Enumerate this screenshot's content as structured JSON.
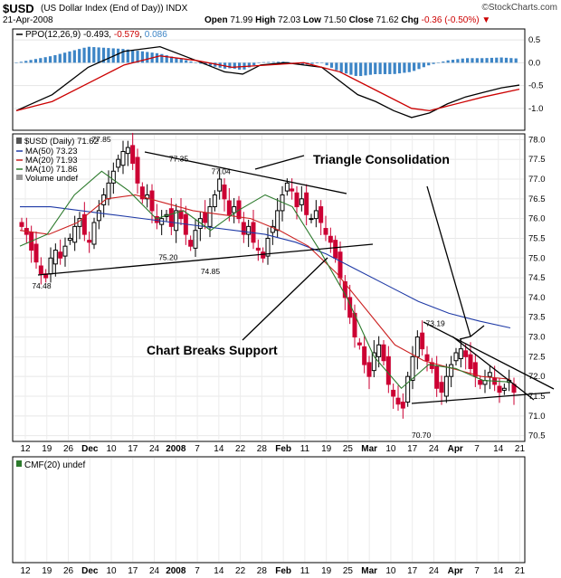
{
  "header": {
    "symbol": "$USD",
    "description": "(US Dollar Index (End of Day))",
    "exchange": "INDX",
    "date": "21-Apr-2008",
    "brand": "©StockCharts.com",
    "open_label": "Open",
    "open": "71.99",
    "high_label": "High",
    "high": "72.03",
    "low_label": "Low",
    "low": "71.50",
    "close_label": "Close",
    "close": "71.62",
    "chg_label": "Chg",
    "chg": "-0.36 (-0.50%)"
  },
  "colors": {
    "ppo": "#000000",
    "ppo_signal": "#cc0000",
    "histogram": "#3d85c6",
    "candle_down": "#cc0033",
    "ma50": "#1f3aa6",
    "ma20": "#cc2222",
    "ma10": "#2c7a2c"
  },
  "chart_data": [
    {
      "type": "line",
      "panel": "PPO",
      "legend": {
        "label": "PPO(12,26,9)",
        "ppo": "-0.493",
        "signal": "-0.579",
        "histogram": "0.086"
      },
      "ylim": [
        -1.4,
        0.7
      ],
      "yticks": [
        "0.5",
        "0.0",
        "-0.5",
        "-1.0"
      ],
      "ytick_values": [
        0.5,
        0.0,
        -0.5,
        -1.0
      ],
      "series": [
        {
          "name": "PPO",
          "color": "#000000",
          "x": [
            0,
            10,
            20,
            30,
            40,
            50,
            58,
            63,
            68,
            75,
            80,
            85,
            95,
            100,
            105,
            110,
            115,
            120,
            125,
            130,
            135,
            140
          ],
          "values": [
            -1.05,
            -0.7,
            -0.1,
            0.25,
            0.35,
            0.05,
            -0.2,
            -0.25,
            -0.05,
            0.0,
            -0.05,
            -0.1,
            -0.7,
            -0.85,
            -1.05,
            -1.2,
            -1.1,
            -0.9,
            -0.75,
            -0.65,
            -0.55,
            -0.49
          ]
        },
        {
          "name": "Signal",
          "color": "#cc0000",
          "x": [
            0,
            10,
            20,
            30,
            40,
            50,
            60,
            70,
            80,
            90,
            100,
            110,
            115,
            120,
            130,
            140
          ],
          "values": [
            -1.05,
            -0.85,
            -0.45,
            -0.05,
            0.15,
            0.05,
            -0.1,
            -0.05,
            0.0,
            -0.2,
            -0.6,
            -1.0,
            -1.05,
            -0.95,
            -0.75,
            -0.58
          ]
        }
      ]
    },
    {
      "type": "candlestick",
      "panel": "price",
      "legend": [
        {
          "label": "$USD (Daily)",
          "value": "71.62"
        },
        {
          "label": "MA(50)",
          "value": "73.23"
        },
        {
          "label": "MA(20)",
          "value": "71.93"
        },
        {
          "label": "MA(10)",
          "value": "71.86"
        },
        {
          "label": "Volume",
          "value": "undef"
        }
      ],
      "ylim": [
        70.4,
        78.1
      ],
      "yticks": [
        "78.0",
        "77.5",
        "77.0",
        "76.5",
        "76.0",
        "75.5",
        "75.0",
        "74.5",
        "74.0",
        "73.5",
        "73.0",
        "72.5",
        "72.0",
        "71.5",
        "71.0",
        "70.5"
      ],
      "ytick_values": [
        78.0,
        77.5,
        77.0,
        76.5,
        76.0,
        75.5,
        75.0,
        74.5,
        74.0,
        73.5,
        73.0,
        72.5,
        72.0,
        71.5,
        71.0,
        70.5
      ],
      "price_labels": [
        {
          "text": "77.85",
          "x": 23,
          "value": 77.85
        },
        {
          "text": "77.35",
          "x": 45,
          "value": 77.35
        },
        {
          "text": "77.04",
          "x": 57,
          "value": 77.04
        },
        {
          "text": "75.20",
          "x": 42,
          "value": 75.2
        },
        {
          "text": "74.85",
          "x": 54,
          "value": 74.85
        },
        {
          "text": "74.48",
          "x": 6,
          "value": 74.48
        },
        {
          "text": "73.19",
          "x": 118,
          "value": 73.19
        },
        {
          "text": "70.70",
          "x": 114,
          "value": 70.7
        }
      ],
      "annotations": [
        {
          "text": "Triangle Consolidation"
        },
        {
          "text": "Chart Breaks Support"
        }
      ],
      "close": [
        75.8,
        75.6,
        75.2,
        74.9,
        74.6,
        74.5,
        75.0,
        75.2,
        75.0,
        75.3,
        75.5,
        75.8,
        76.0,
        75.6,
        75.4,
        75.9,
        76.2,
        76.6,
        76.9,
        77.2,
        77.5,
        77.7,
        77.8,
        77.4,
        76.9,
        76.5,
        76.6,
        76.2,
        75.9,
        76.0,
        76.1,
        75.8,
        76.2,
        76.0,
        75.6,
        75.3,
        75.7,
        76.0,
        75.9,
        76.3,
        76.6,
        77.0,
        76.5,
        76.1,
        76.3,
        76.0,
        75.6,
        75.8,
        75.4,
        75.2,
        75.0,
        75.5,
        75.8,
        76.2,
        76.6,
        76.9,
        76.7,
        76.3,
        76.5,
        76.1,
        76.0,
        76.2,
        75.9,
        75.6,
        75.4,
        75.0,
        74.5,
        74.0,
        73.5,
        73.0,
        72.8,
        72.3,
        72.0,
        72.6,
        72.8,
        72.4,
        71.8,
        71.5,
        71.3,
        71.2,
        72.0,
        72.5,
        73.0,
        72.7,
        72.4,
        72.2,
        71.7,
        71.6,
        72.0,
        72.3,
        72.6,
        72.7,
        72.5,
        72.2,
        72.0,
        71.8,
        71.9,
        72.1,
        71.8,
        71.6,
        71.7,
        71.9,
        71.6
      ],
      "ma50": [
        76.3,
        76.3,
        76.2,
        76.1,
        76.0,
        75.9,
        75.8,
        75.7,
        75.6,
        75.4,
        75.1,
        74.7,
        74.3,
        73.9,
        73.6,
        73.4,
        73.23
      ],
      "ma20": [
        75.7,
        75.6,
        75.9,
        76.5,
        76.6,
        76.4,
        76.2,
        76.1,
        76.0,
        75.7,
        75.3,
        74.6,
        73.7,
        72.8,
        72.4,
        72.2,
        72.0,
        71.93
      ],
      "ma10": [
        75.3,
        75.6,
        76.6,
        77.2,
        76.7,
        76.0,
        76.2,
        75.7,
        76.2,
        76.6,
        76.3,
        75.2,
        74.0,
        72.5,
        71.7,
        72.3,
        72.2,
        71.9,
        71.86
      ]
    },
    {
      "type": "line",
      "panel": "CMF",
      "legend": {
        "label": "CMF(20)",
        "value": "undef"
      },
      "series": []
    }
  ],
  "x_axis": {
    "labels": [
      "12",
      "19",
      "26",
      "Dec",
      "10",
      "17",
      "24",
      "2008",
      "7",
      "14",
      "22",
      "28",
      "Feb",
      "11",
      "19",
      "25",
      "Mar",
      "10",
      "17",
      "24",
      "Apr",
      "7",
      "14",
      "21"
    ],
    "bold": [
      "Dec",
      "2008",
      "Feb",
      "Mar",
      "Apr"
    ]
  }
}
